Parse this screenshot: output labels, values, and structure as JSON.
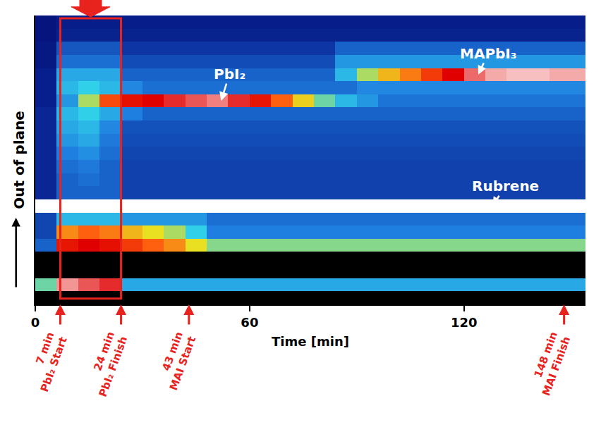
{
  "chart_data": {
    "type": "heatmap",
    "x_label": "Time [min]",
    "y_label": "Out of plane",
    "tick_labels": "x",
    "grid": false,
    "xlim": [
      0,
      154
    ],
    "xticks": [
      0,
      60,
      120
    ],
    "ylim": [
      -0.5,
      21.5
    ],
    "zlim": [
      0,
      1
    ],
    "x": [
      3,
      9,
      15,
      21,
      27,
      33,
      39,
      45,
      51,
      57,
      63,
      69,
      75,
      81,
      87,
      93,
      99,
      105,
      111,
      117,
      123,
      129,
      135,
      141,
      147,
      153
    ],
    "y": [
      0,
      1,
      2,
      3,
      4,
      5,
      6,
      7,
      8,
      9,
      10,
      11,
      12,
      13,
      14,
      15,
      16,
      17,
      18,
      19,
      20,
      21
    ],
    "z": [
      [
        null,
        null,
        null,
        null,
        null,
        null,
        null,
        null,
        null,
        null,
        null,
        null,
        null,
        null,
        null,
        null,
        null,
        null,
        null,
        null,
        null,
        null,
        null,
        null,
        null,
        null
      ],
      [
        0.5,
        0.95,
        0.92,
        0.9,
        0.4,
        0.4,
        0.4,
        0.4,
        0.4,
        0.4,
        0.4,
        0.4,
        0.4,
        0.4,
        0.4,
        0.4,
        0.4,
        0.4,
        0.4,
        0.4,
        0.4,
        0.4,
        0.4,
        0.4,
        0.4,
        0.4
      ],
      [
        null,
        null,
        null,
        null,
        null,
        null,
        null,
        null,
        null,
        null,
        null,
        null,
        null,
        null,
        null,
        null,
        null,
        null,
        null,
        null,
        null,
        null,
        null,
        null,
        null,
        null
      ],
      [
        null,
        null,
        null,
        null,
        null,
        null,
        null,
        null,
        null,
        null,
        null,
        null,
        null,
        null,
        null,
        null,
        null,
        null,
        null,
        null,
        null,
        null,
        null,
        null,
        null,
        null
      ],
      [
        0.3,
        0.85,
        0.88,
        0.86,
        0.8,
        0.75,
        0.7,
        0.6,
        0.52,
        0.52,
        0.52,
        0.52,
        0.52,
        0.52,
        0.52,
        0.52,
        0.52,
        0.52,
        0.52,
        0.52,
        0.52,
        0.52,
        0.52,
        0.52,
        0.52,
        0.52
      ],
      [
        0.25,
        0.7,
        0.75,
        0.72,
        0.65,
        0.6,
        0.55,
        0.45,
        0.35,
        0.35,
        0.35,
        0.35,
        0.35,
        0.35,
        0.35,
        0.35,
        0.35,
        0.35,
        0.35,
        0.35,
        0.35,
        0.35,
        0.35,
        0.35,
        0.35,
        0.35
      ],
      [
        0.25,
        0.42,
        0.42,
        0.42,
        0.38,
        0.38,
        0.38,
        0.38,
        0.32,
        0.32,
        0.32,
        0.32,
        0.32,
        0.32,
        0.32,
        0.32,
        0.32,
        0.32,
        0.32,
        0.32,
        0.32,
        0.32,
        0.32,
        0.32,
        0.32,
        0.32
      ],
      [
        1,
        1,
        1,
        1,
        1,
        1,
        1,
        1,
        1,
        1,
        1,
        1,
        1,
        1,
        1,
        1,
        1,
        1,
        1,
        1,
        1,
        1,
        1,
        1,
        1,
        1
      ],
      [
        0.18,
        0.3,
        0.3,
        0.3,
        0.24,
        0.24,
        0.24,
        0.24,
        0.24,
        0.24,
        0.24,
        0.24,
        0.24,
        0.24,
        0.24,
        0.24,
        0.24,
        0.24,
        0.24,
        0.24,
        0.24,
        0.24,
        0.24,
        0.24,
        0.24,
        0.24
      ],
      [
        0.18,
        0.3,
        0.32,
        0.3,
        0.24,
        0.24,
        0.24,
        0.24,
        0.24,
        0.24,
        0.24,
        0.24,
        0.24,
        0.24,
        0.24,
        0.24,
        0.24,
        0.24,
        0.24,
        0.24,
        0.24,
        0.24,
        0.24,
        0.24,
        0.24,
        0.24
      ],
      [
        0.18,
        0.32,
        0.34,
        0.3,
        0.24,
        0.24,
        0.24,
        0.24,
        0.24,
        0.24,
        0.24,
        0.24,
        0.24,
        0.24,
        0.24,
        0.24,
        0.24,
        0.24,
        0.24,
        0.24,
        0.24,
        0.24,
        0.24,
        0.24,
        0.24,
        0.24
      ],
      [
        0.18,
        0.35,
        0.37,
        0.32,
        0.25,
        0.25,
        0.25,
        0.25,
        0.25,
        0.25,
        0.25,
        0.25,
        0.25,
        0.25,
        0.25,
        0.25,
        0.25,
        0.25,
        0.25,
        0.25,
        0.25,
        0.25,
        0.25,
        0.25,
        0.25,
        0.25
      ],
      [
        0.18,
        0.38,
        0.4,
        0.34,
        0.26,
        0.26,
        0.26,
        0.26,
        0.26,
        0.26,
        0.26,
        0.26,
        0.26,
        0.26,
        0.26,
        0.26,
        0.26,
        0.26,
        0.26,
        0.26,
        0.26,
        0.26,
        0.26,
        0.26,
        0.26,
        0.26
      ],
      [
        0.18,
        0.4,
        0.42,
        0.36,
        0.27,
        0.27,
        0.27,
        0.27,
        0.27,
        0.27,
        0.27,
        0.27,
        0.27,
        0.27,
        0.27,
        0.27,
        0.27,
        0.27,
        0.27,
        0.27,
        0.27,
        0.27,
        0.27,
        0.27,
        0.27,
        0.27
      ],
      [
        0.18,
        0.42,
        0.45,
        0.4,
        0.35,
        0.3,
        0.3,
        0.3,
        0.3,
        0.3,
        0.3,
        0.3,
        0.3,
        0.3,
        0.3,
        0.3,
        0.3,
        0.3,
        0.3,
        0.3,
        0.3,
        0.3,
        0.3,
        0.3,
        0.3,
        0.3
      ],
      [
        0.15,
        0.38,
        0.55,
        0.78,
        0.86,
        0.88,
        0.9,
        0.92,
        0.94,
        0.9,
        0.85,
        0.75,
        0.62,
        0.5,
        0.42,
        0.38,
        0.33,
        0.33,
        0.33,
        0.33,
        0.33,
        0.33,
        0.33,
        0.33,
        0.33,
        0.33
      ],
      [
        0.15,
        0.42,
        0.45,
        0.42,
        0.36,
        0.32,
        0.32,
        0.32,
        0.32,
        0.32,
        0.32,
        0.32,
        0.32,
        0.32,
        0.32,
        0.36,
        0.36,
        0.36,
        0.36,
        0.36,
        0.36,
        0.36,
        0.36,
        0.36,
        0.36,
        0.36
      ],
      [
        0.15,
        0.4,
        0.4,
        0.4,
        0.3,
        0.3,
        0.3,
        0.3,
        0.3,
        0.3,
        0.3,
        0.3,
        0.3,
        0.3,
        0.42,
        0.55,
        0.65,
        0.72,
        0.8,
        0.88,
        0.93,
        0.96,
        0.97,
        0.97,
        0.96,
        0.96
      ],
      [
        0.12,
        0.32,
        0.32,
        0.32,
        0.26,
        0.26,
        0.26,
        0.26,
        0.26,
        0.26,
        0.26,
        0.26,
        0.26,
        0.26,
        0.38,
        0.38,
        0.38,
        0.38,
        0.38,
        0.38,
        0.38,
        0.38,
        0.38,
        0.38,
        0.38,
        0.38
      ],
      [
        0.12,
        0.28,
        0.28,
        0.28,
        0.22,
        0.22,
        0.22,
        0.22,
        0.22,
        0.22,
        0.22,
        0.22,
        0.22,
        0.22,
        0.3,
        0.3,
        0.3,
        0.3,
        0.3,
        0.3,
        0.3,
        0.3,
        0.3,
        0.3,
        0.3,
        0.3
      ],
      [
        0.1,
        0.16,
        0.16,
        0.16,
        0.16,
        0.16,
        0.16,
        0.16,
        0.16,
        0.16,
        0.16,
        0.16,
        0.16,
        0.16,
        0.16,
        0.16,
        0.16,
        0.16,
        0.16,
        0.16,
        0.16,
        0.16,
        0.16,
        0.16,
        0.16,
        0.16
      ],
      [
        0.1,
        0.14,
        0.14,
        0.14,
        0.14,
        0.14,
        0.14,
        0.14,
        0.14,
        0.14,
        0.14,
        0.14,
        0.14,
        0.14,
        0.14,
        0.14,
        0.14,
        0.14,
        0.14,
        0.14,
        0.14,
        0.14,
        0.14,
        0.14,
        0.14,
        0.14
      ]
    ],
    "annotations": [
      {
        "text": "PbI₂",
        "x": 52,
        "y": 15
      },
      {
        "text": "MAPbI₃",
        "x": 124,
        "y": 17
      },
      {
        "text": "Rubrene",
        "x": 128,
        "y": 7
      }
    ],
    "events": [
      {
        "x": 7,
        "time": "7 min",
        "label": "PbI₂ Start"
      },
      {
        "x": 24,
        "time": "24 min",
        "label": "PbI₂ Finish"
      },
      {
        "x": 43,
        "time": "43 min",
        "label": "MAI Start"
      },
      {
        "x": 148,
        "time": "148 min",
        "label": "MAI Finish"
      }
    ]
  }
}
